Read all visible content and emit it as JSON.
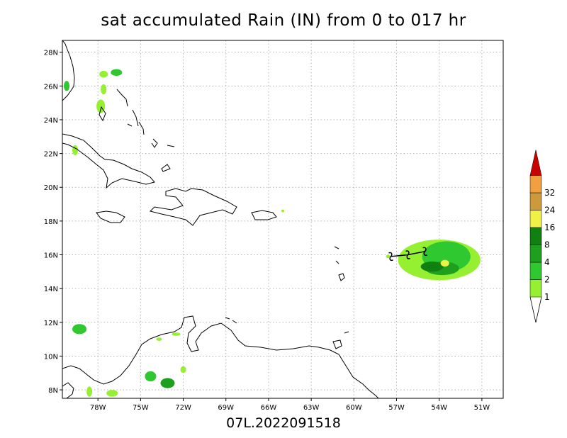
{
  "title": "sat accumulated Rain (IN) from 0 to 017 hr",
  "subtitle": "07L.2022091518",
  "map": {
    "lon_range": [
      -80.5,
      -49.5
    ],
    "lat_range": [
      7.5,
      28.7
    ],
    "lon_ticks": [
      {
        "value": -78,
        "label": "78W"
      },
      {
        "value": -75,
        "label": "75W"
      },
      {
        "value": -72,
        "label": "72W"
      },
      {
        "value": -69,
        "label": "69W"
      },
      {
        "value": -66,
        "label": "66W"
      },
      {
        "value": -63,
        "label": "63W"
      },
      {
        "value": -60,
        "label": "60W"
      },
      {
        "value": -57,
        "label": "57W"
      },
      {
        "value": -54,
        "label": "54W"
      },
      {
        "value": -51,
        "label": "51W"
      }
    ],
    "lat_ticks": [
      {
        "value": 8,
        "label": "8N"
      },
      {
        "value": 10,
        "label": "10N"
      },
      {
        "value": 12,
        "label": "12N"
      },
      {
        "value": 14,
        "label": "14N"
      },
      {
        "value": 16,
        "label": "16N"
      },
      {
        "value": 18,
        "label": "18N"
      },
      {
        "value": 20,
        "label": "20N"
      },
      {
        "value": 22,
        "label": "22N"
      },
      {
        "value": 24,
        "label": "24N"
      },
      {
        "value": 26,
        "label": "26N"
      },
      {
        "value": 28,
        "label": "28N"
      }
    ],
    "grid": true,
    "storm_track": [
      {
        "lon": -57.4,
        "lat": 15.9
      },
      {
        "lon": -56.2,
        "lat": 16.0
      },
      {
        "lon": -55.0,
        "lat": 16.2
      }
    ],
    "rain_areas": [
      {
        "lon": -54.0,
        "lat": 15.7,
        "rlon": 2.9,
        "rlat": 1.2,
        "level": 1
      },
      {
        "lon": -53.5,
        "lat": 15.9,
        "rlon": 1.7,
        "rlat": 0.9,
        "level": 2
      },
      {
        "lon": -53.8,
        "lat": 15.2,
        "rlon": 1.2,
        "rlat": 0.4,
        "level": 3
      },
      {
        "lon": -54.5,
        "lat": 15.3,
        "rlon": 0.8,
        "rlat": 0.3,
        "level": 4
      },
      {
        "lon": -53.6,
        "lat": 15.5,
        "rlon": 0.3,
        "rlat": 0.2,
        "level": 5
      },
      {
        "lon": -73.1,
        "lat": 8.4,
        "rlon": 0.5,
        "rlat": 0.3,
        "level": 3
      },
      {
        "lon": -74.3,
        "lat": 8.8,
        "rlon": 0.4,
        "rlat": 0.3,
        "level": 2
      },
      {
        "lon": -79.3,
        "lat": 11.6,
        "rlon": 0.5,
        "rlat": 0.3,
        "level": 2
      },
      {
        "lon": -77.0,
        "lat": 7.8,
        "rlon": 0.4,
        "rlat": 0.2,
        "level": 1
      },
      {
        "lon": -78.6,
        "lat": 7.9,
        "rlon": 0.2,
        "rlat": 0.3,
        "level": 1
      },
      {
        "lon": -72.0,
        "lat": 9.2,
        "rlon": 0.2,
        "rlat": 0.2,
        "level": 1
      },
      {
        "lon": -72.5,
        "lat": 11.3,
        "rlon": 0.3,
        "rlat": 0.1,
        "level": 1
      },
      {
        "lon": -73.7,
        "lat": 11.0,
        "rlon": 0.2,
        "rlat": 0.1,
        "level": 1
      },
      {
        "lon": -76.7,
        "lat": 26.8,
        "rlon": 0.4,
        "rlat": 0.2,
        "level": 2
      },
      {
        "lon": -77.6,
        "lat": 26.7,
        "rlon": 0.3,
        "rlat": 0.2,
        "level": 1
      },
      {
        "lon": -80.2,
        "lat": 26.0,
        "rlon": 0.2,
        "rlat": 0.3,
        "level": 2
      },
      {
        "lon": -77.8,
        "lat": 24.8,
        "rlon": 0.3,
        "rlat": 0.4,
        "level": 1
      },
      {
        "lon": -77.6,
        "lat": 25.8,
        "rlon": 0.2,
        "rlat": 0.3,
        "level": 1
      },
      {
        "lon": -79.6,
        "lat": 22.2,
        "rlon": 0.2,
        "rlat": 0.3,
        "level": 1
      },
      {
        "lon": -57.6,
        "lat": 15.9,
        "rlon": 0.15,
        "rlat": 0.1,
        "level": 1
      },
      {
        "lon": -65.0,
        "lat": 18.6,
        "rlon": 0.1,
        "rlat": 0.08,
        "level": 1
      }
    ]
  },
  "legend": {
    "levels": [
      {
        "label": "1",
        "color": "#96f032"
      },
      {
        "label": "2",
        "color": "#30c830"
      },
      {
        "label": "4",
        "color": "#1ea01e"
      },
      {
        "label": "8",
        "color": "#108010"
      },
      {
        "label": "16",
        "color": "#f0f046"
      },
      {
        "label": "24",
        "color": "#cc9a3a"
      },
      {
        "label": "32",
        "color": "#f0a040"
      }
    ],
    "overflow_color": "#c80000"
  }
}
